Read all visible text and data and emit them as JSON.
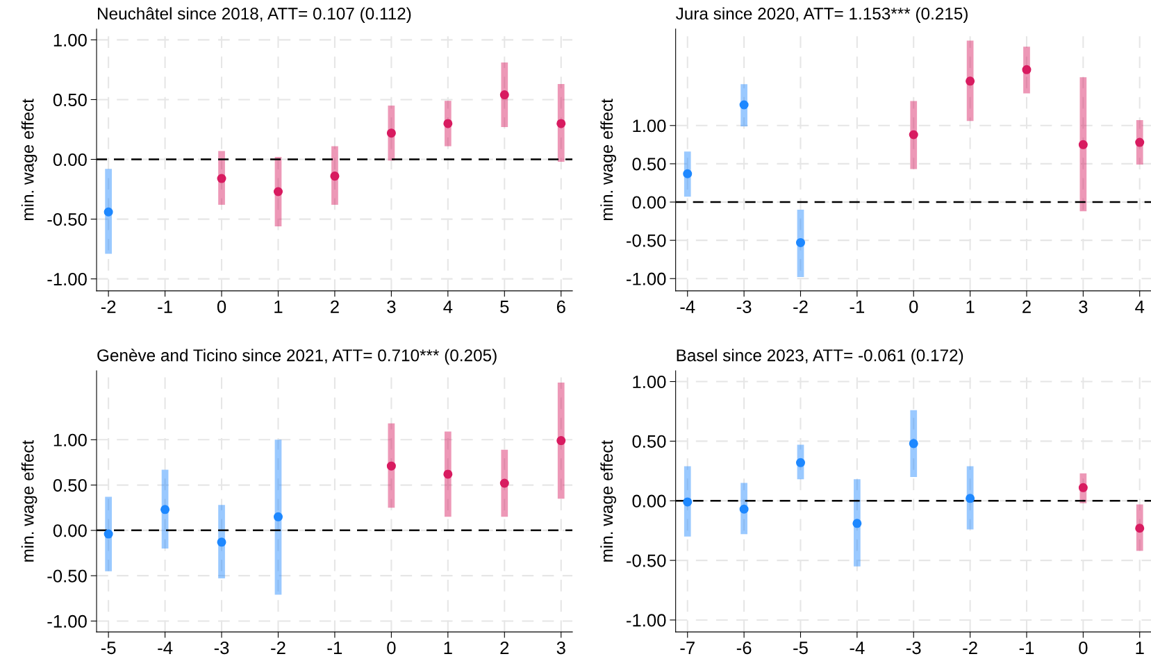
{
  "chart_data": [
    {
      "type": "scatter",
      "title": "Neuchâtel since 2018, ATT= 0.107 (0.112)",
      "ylabel": "min. wage effect",
      "xlim": [
        -2.21,
        6.2
      ],
      "xticks": [
        -2,
        -1,
        0,
        1,
        2,
        3,
        4,
        5,
        6
      ],
      "ylim": [
        -1.1,
        1.09
      ],
      "yticks": [
        {
          "value": -1,
          "label": "-1.00"
        },
        {
          "value": -0.5,
          "label": "-0.50"
        },
        {
          "value": 0,
          "label": "0.00"
        },
        {
          "value": 0.5,
          "label": "0.50"
        },
        {
          "value": 1,
          "label": "1.00"
        }
      ],
      "grid": true,
      "marker": "circle",
      "ref_lines": [
        {
          "axis": "y",
          "value": 0,
          "color": "#000000",
          "line_style": "dashed"
        }
      ],
      "series": [
        {
          "color": "#1e88ff",
          "x": [
            -2
          ],
          "values": [
            -0.44
          ],
          "errors": [
            [
              -0.79,
              -0.08
            ]
          ]
        },
        {
          "color": "#d81b60",
          "x": [
            0,
            1,
            2,
            3,
            4,
            5,
            6
          ],
          "values": [
            -0.16,
            -0.27,
            -0.14,
            0.22,
            0.3,
            0.54,
            0.3
          ],
          "errors": [
            [
              -0.38,
              0.07
            ],
            [
              -0.56,
              0.02
            ],
            [
              -0.38,
              0.11
            ],
            [
              -0.01,
              0.45
            ],
            [
              0.11,
              0.49
            ],
            [
              0.27,
              0.81
            ],
            [
              -0.02,
              0.63
            ]
          ]
        }
      ]
    },
    {
      "type": "scatter",
      "title": "Jura since 2020, ATT= 1.153*** (0.215)",
      "ylabel": "min. wage effect",
      "xlim": [
        -4.21,
        4.2
      ],
      "xticks": [
        -4,
        -3,
        -2,
        -1,
        0,
        1,
        2,
        3,
        4
      ],
      "ylim": [
        -1.16,
        2.26
      ],
      "yticks": [
        {
          "value": -1,
          "label": "-1.00"
        },
        {
          "value": -0.5,
          "label": "-0.50"
        },
        {
          "value": 0,
          "label": "0.00"
        },
        {
          "value": 0.5,
          "label": "0.50"
        },
        {
          "value": 1,
          "label": "1.00"
        }
      ],
      "grid": true,
      "marker": "circle",
      "ref_lines": [
        {
          "axis": "y",
          "value": 0,
          "color": "#000000",
          "line_style": "dashed"
        }
      ],
      "series": [
        {
          "color": "#1e88ff",
          "x": [
            -4,
            -3,
            -2
          ],
          "values": [
            0.37,
            1.27,
            -0.53
          ],
          "errors": [
            [
              0.07,
              0.66
            ],
            [
              0.99,
              1.54
            ],
            [
              -0.98,
              -0.1
            ]
          ]
        },
        {
          "color": "#d81b60",
          "x": [
            0,
            1,
            2,
            3,
            4
          ],
          "values": [
            0.88,
            1.58,
            1.73,
            0.75,
            0.78
          ],
          "errors": [
            [
              0.43,
              1.32
            ],
            [
              1.06,
              2.11
            ],
            [
              1.42,
              2.03
            ],
            [
              -0.12,
              1.63
            ],
            [
              0.49,
              1.07
            ]
          ]
        }
      ]
    },
    {
      "type": "scatter",
      "title": "Genève and Ticino since 2021, ATT= 0.710*** (0.205)",
      "ylabel": "min. wage effect",
      "xlim": [
        -5.21,
        3.2
      ],
      "xticks": [
        -5,
        -4,
        -3,
        -2,
        -1,
        0,
        1,
        2,
        3
      ],
      "ylim": [
        -1.12,
        1.76
      ],
      "yticks": [
        {
          "value": -1,
          "label": "-1.00"
        },
        {
          "value": -0.5,
          "label": "-0.50"
        },
        {
          "value": 0,
          "label": "0.00"
        },
        {
          "value": 0.5,
          "label": "0.50"
        },
        {
          "value": 1,
          "label": "1.00"
        }
      ],
      "grid": true,
      "marker": "circle",
      "ref_lines": [
        {
          "axis": "y",
          "value": 0,
          "color": "#000000",
          "line_style": "dashed"
        }
      ],
      "series": [
        {
          "color": "#1e88ff",
          "x": [
            -5,
            -4,
            -3,
            -2
          ],
          "values": [
            -0.04,
            0.23,
            -0.13,
            0.15
          ],
          "errors": [
            [
              -0.45,
              0.37
            ],
            [
              -0.2,
              0.67
            ],
            [
              -0.53,
              0.28
            ],
            [
              -0.71,
              1.0
            ]
          ]
        },
        {
          "color": "#d81b60",
          "x": [
            0,
            1,
            2,
            3
          ],
          "values": [
            0.71,
            0.62,
            0.52,
            0.99
          ],
          "errors": [
            [
              0.25,
              1.18
            ],
            [
              0.15,
              1.09
            ],
            [
              0.15,
              0.89
            ],
            [
              0.35,
              1.63
            ]
          ]
        }
      ]
    },
    {
      "type": "scatter",
      "title": "Basel since 2023, ATT= -0.061 (0.172)",
      "ylabel": "min. wage effect",
      "xlim": [
        -7.21,
        1.2
      ],
      "xticks": [
        -7,
        -6,
        -5,
        -4,
        -3,
        -2,
        -1,
        0,
        1
      ],
      "ylim": [
        -1.1,
        1.09
      ],
      "yticks": [
        {
          "value": -1,
          "label": "-1.00"
        },
        {
          "value": -0.5,
          "label": "-0.50"
        },
        {
          "value": 0,
          "label": "0.00"
        },
        {
          "value": 0.5,
          "label": "0.50"
        },
        {
          "value": 1,
          "label": "1.00"
        }
      ],
      "grid": true,
      "marker": "circle",
      "ref_lines": [
        {
          "axis": "y",
          "value": 0,
          "color": "#000000",
          "line_style": "dashed"
        }
      ],
      "series": [
        {
          "color": "#1e88ff",
          "x": [
            -7,
            -6,
            -5,
            -4,
            -3,
            -2
          ],
          "values": [
            -0.01,
            -0.07,
            0.32,
            -0.19,
            0.48,
            0.02
          ],
          "errors": [
            [
              -0.3,
              0.29
            ],
            [
              -0.28,
              0.15
            ],
            [
              0.18,
              0.47
            ],
            [
              -0.55,
              0.18
            ],
            [
              0.2,
              0.76
            ],
            [
              -0.24,
              0.29
            ]
          ]
        },
        {
          "color": "#d81b60",
          "x": [
            0,
            1
          ],
          "values": [
            0.11,
            -0.23
          ],
          "errors": [
            [
              -0.02,
              0.23
            ],
            [
              -0.42,
              -0.03
            ]
          ]
        }
      ]
    }
  ]
}
